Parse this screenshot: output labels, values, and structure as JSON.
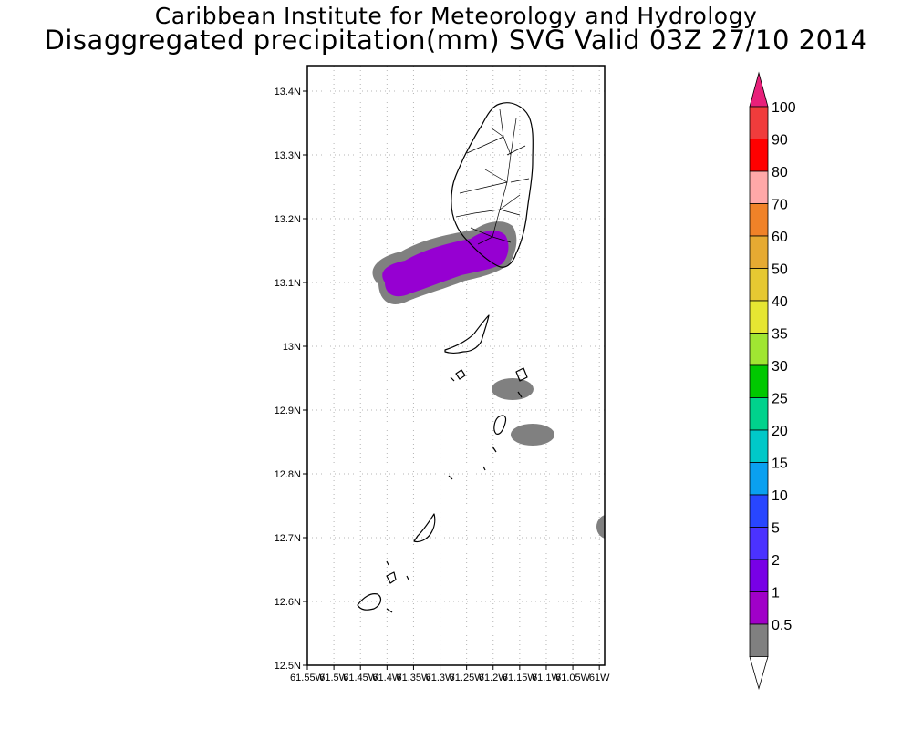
{
  "header": {
    "title": "Caribbean Institute for Meteorology and Hydrology",
    "subtitle": "Disaggregated precipitation(mm) SVG Valid 03Z 27/10 2014"
  },
  "map": {
    "lat_ticks": [
      "13.4N",
      "13.3N",
      "13.2N",
      "13.1N",
      "13N",
      "12.9N",
      "12.8N",
      "12.7N",
      "12.6N",
      "12.5N"
    ],
    "lon_ticks": [
      "61.55W",
      "61.5W",
      "61.45W",
      "61.4W",
      "61.35W",
      "61.3W",
      "61.25W",
      "61.2W",
      "61.15W",
      "61.1W",
      "61.05W",
      "61W"
    ],
    "lat_range": [
      12.5,
      13.44
    ],
    "lon_range": [
      -61.55,
      -60.99
    ],
    "gridlines": true
  },
  "colorbar": {
    "labels": [
      "100",
      "90",
      "80",
      "70",
      "60",
      "50",
      "40",
      "35",
      "30",
      "25",
      "20",
      "15",
      "10",
      "5",
      "2",
      "1",
      "0.5"
    ],
    "colors": {
      "top_arrow": "#e8207a",
      "bins": [
        "#f03c3c",
        "#ff0000",
        "#ffa8a8",
        "#f08228",
        "#e6aa32",
        "#e6c832",
        "#e6e632",
        "#a0e632",
        "#00c800",
        "#00d28c",
        "#00c8c8",
        "#0aa0f0",
        "#2846ff",
        "#4b32ff",
        "#7800e6",
        "#a000c8",
        "#808080"
      ],
      "bottom_arrow": "#ffffff"
    }
  },
  "precipitation": {
    "gray_class": "#808080",
    "purple_class": "#9600d2"
  }
}
